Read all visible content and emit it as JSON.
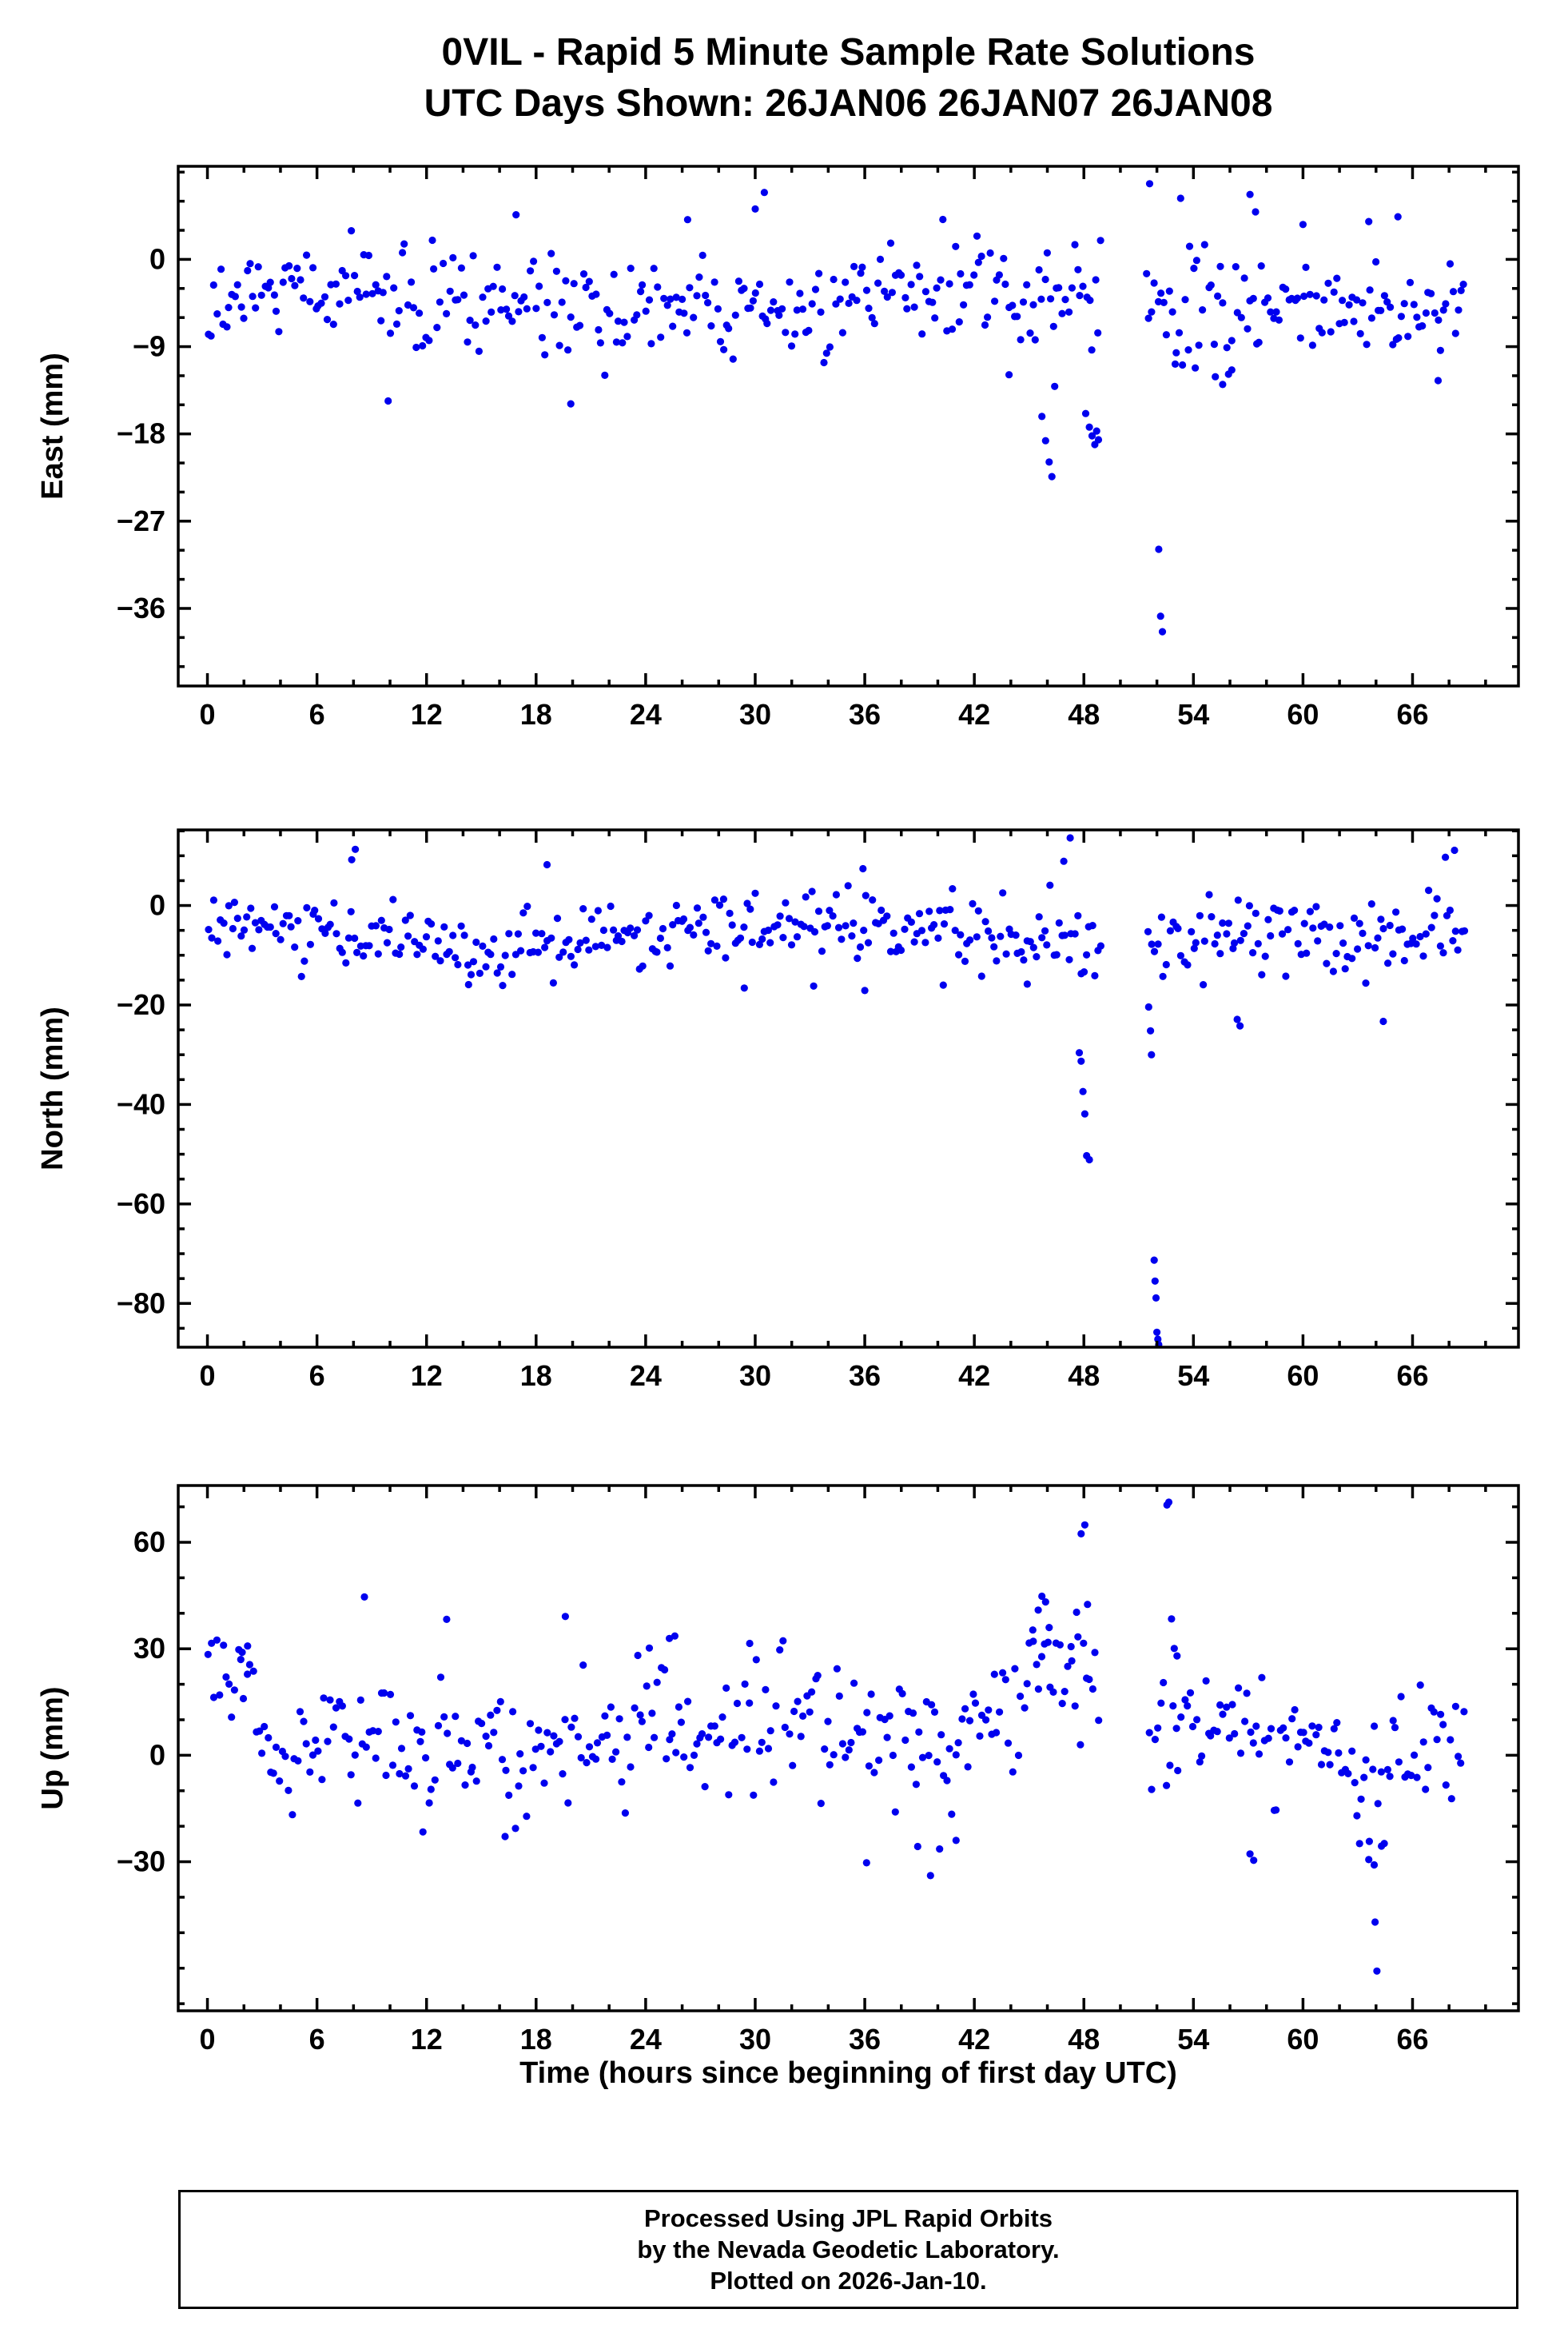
{
  "title": {
    "line1": "0VIL - Rapid 5 Minute Sample Rate Solutions",
    "line2": "UTC Days Shown:  26JAN06 26JAN07 26JAN08"
  },
  "footer": {
    "line1": "Processed Using JPL Rapid Orbits",
    "line2": "by the Nevada Geodetic Laboratory.",
    "line3": "Plotted on 2026-Jan-10."
  },
  "chart_data": {
    "type": "scatter",
    "title": "0VIL - Rapid 5 Minute Sample Rate Solutions",
    "subtitle": "UTC Days Shown:  26JAN06 26JAN07 26JAN08",
    "xlabel": "Time (hours since beginning of first day UTC)",
    "point_color": "#0000ee",
    "point_radius": 4.6,
    "grid": false,
    "legend": "none",
    "seed": 1234567,
    "x_axis": {
      "min": -1.6,
      "max": 71.8,
      "tick_values": [
        0,
        6,
        12,
        18,
        24,
        30,
        36,
        42,
        48,
        54,
        60,
        66
      ],
      "minor_step": 2,
      "sample_interval_hours": 0.0833,
      "data_gaps": [
        [
          48.95,
          51.4
        ]
      ]
    },
    "panels": [
      {
        "name": "east",
        "ylabel": "East (mm)",
        "ylim": [
          -44,
          9.6
        ],
        "yticks": [
          0,
          -9,
          -18,
          -27,
          -36
        ],
        "yminor": 3,
        "band": {
          "x_start": 0.05,
          "x_end": 68.85,
          "x_step": 0.163,
          "x_jitter": 0.1,
          "base": -4.3,
          "wander_amp": 1.3,
          "wander_period": 6.5,
          "phase": 0.8,
          "noise_sd": 2.6,
          "clip": [
            -11.8,
            4.6
          ],
          "regions": [
            {
              "x0": 43.5,
              "x1": 49.0,
              "dy": -1.5,
              "s": 1.15
            },
            {
              "x0": 51.8,
              "x1": 58.0,
              "dy": -1.2,
              "s": 1.25
            }
          ]
        },
        "outliers": [
          [
            16.9,
            4.6
          ],
          [
            26.3,
            4.1
          ],
          [
            30.0,
            5.2
          ],
          [
            30.5,
            6.9
          ],
          [
            51.6,
            7.8
          ],
          [
            53.3,
            6.3
          ],
          [
            57.1,
            6.7
          ],
          [
            57.4,
            4.9
          ],
          [
            60.0,
            3.6
          ],
          [
            63.6,
            3.9
          ],
          [
            65.2,
            4.4
          ],
          [
            9.9,
            -14.6
          ],
          [
            19.9,
            -14.9
          ],
          [
            43.9,
            -11.9
          ],
          [
            45.7,
            -16.2
          ],
          [
            45.9,
            -18.7
          ],
          [
            46.1,
            -20.9
          ],
          [
            46.25,
            -22.4
          ],
          [
            46.4,
            -13.1
          ],
          [
            48.1,
            -15.9
          ],
          [
            48.3,
            -17.3
          ],
          [
            48.45,
            -18.2
          ],
          [
            48.6,
            -19.1
          ],
          [
            48.7,
            -17.7
          ],
          [
            48.8,
            -18.6
          ],
          [
            52.1,
            -29.9
          ],
          [
            52.2,
            -36.8
          ],
          [
            52.3,
            -38.4
          ],
          [
            53.0,
            -10.8
          ],
          [
            54.1,
            -11.2
          ],
          [
            55.2,
            -12.1
          ],
          [
            55.6,
            -12.9
          ],
          [
            56.1,
            -11.4
          ],
          [
            67.4,
            -12.5
          ]
        ]
      },
      {
        "name": "north",
        "ylabel": "North (mm)",
        "ylim": [
          -88.8,
          15.2
        ],
        "yticks": [
          0,
          -20,
          -40,
          -60,
          -80
        ],
        "yminor": 5,
        "band": {
          "x_start": 0.05,
          "x_end": 68.85,
          "x_step": 0.163,
          "x_jitter": 0.1,
          "base": -5.5,
          "wander_amp": 1.5,
          "wander_period": 5.5,
          "phase": 2.0,
          "noise_sd": 3.4,
          "clip": [
            -15.5,
            4.2
          ],
          "regions": [
            {
              "x0": 12.5,
              "x1": 16.5,
              "dy": -2.5,
              "s": 1.0
            },
            {
              "x0": 61.5,
              "x1": 64.5,
              "dy": -3.0,
              "s": 1.1
            },
            {
              "x0": 51.5,
              "x1": 69.0,
              "dy": -1.0,
              "s": 1.1
            }
          ]
        },
        "outliers": [
          [
            7.9,
            9.2
          ],
          [
            8.1,
            11.3
          ],
          [
            18.6,
            8.2
          ],
          [
            35.9,
            7.4
          ],
          [
            46.9,
            8.9
          ],
          [
            47.25,
            13.6
          ],
          [
            67.8,
            9.7
          ],
          [
            68.3,
            11.1
          ],
          [
            14.3,
            -15.9
          ],
          [
            29.4,
            -16.6
          ],
          [
            33.2,
            -16.2
          ],
          [
            36.0,
            -17.1
          ],
          [
            40.3,
            -16.0
          ],
          [
            44.9,
            -15.8
          ],
          [
            47.75,
            -29.6
          ],
          [
            47.85,
            -31.3
          ],
          [
            47.95,
            -37.4
          ],
          [
            48.05,
            -41.9
          ],
          [
            48.15,
            -50.3
          ],
          [
            48.3,
            -51.1
          ],
          [
            51.55,
            -20.4
          ],
          [
            51.65,
            -25.2
          ],
          [
            51.7,
            -30.0
          ],
          [
            51.85,
            -71.3
          ],
          [
            51.9,
            -75.5
          ],
          [
            51.95,
            -78.9
          ],
          [
            52.0,
            -85.8
          ],
          [
            52.05,
            -87.2
          ],
          [
            52.1,
            -88.3
          ],
          [
            56.4,
            -22.9
          ],
          [
            56.55,
            -24.2
          ],
          [
            64.4,
            -23.3
          ]
        ]
      },
      {
        "name": "up",
        "ylabel": "Up (mm)",
        "ylim": [
          -72,
          76
        ],
        "yticks": [
          60,
          30,
          0,
          -30
        ],
        "yminor": 10,
        "band": {
          "x_start": 0.05,
          "x_end": 68.85,
          "x_step": 0.163,
          "x_jitter": 0.1,
          "base": 7.0,
          "wander_amp": 5.0,
          "wander_period": 7.5,
          "phase": 2.2,
          "noise_sd": 8.5,
          "clip": [
            -24.0,
            31.0
          ],
          "regions": [
            {
              "x0": 0.0,
              "x1": 2.6,
              "dy": 9.0,
              "s": 0.8
            },
            {
              "x0": 3.4,
              "x1": 6.3,
              "dy": -13.0,
              "s": 0.9
            },
            {
              "x0": 10.5,
              "x1": 12.3,
              "dy": -5.0,
              "s": 1.0
            },
            {
              "x0": 23.5,
              "x1": 26.5,
              "dy": 5.0,
              "s": 1.1
            },
            {
              "x0": 36.0,
              "x1": 41.0,
              "dy": -7.0,
              "s": 1.2
            },
            {
              "x0": 44.8,
              "x1": 48.3,
              "dy": 9.0,
              "s": 1.2
            },
            {
              "x0": 62.8,
              "x1": 64.6,
              "dy": -12.0,
              "s": 1.1
            }
          ]
        },
        "outliers": [
          [
            1.9,
            29.0
          ],
          [
            2.2,
            30.8
          ],
          [
            8.6,
            44.6
          ],
          [
            13.1,
            38.3
          ],
          [
            19.6,
            39.1
          ],
          [
            24.2,
            30.2
          ],
          [
            25.3,
            32.9
          ],
          [
            25.6,
            33.6
          ],
          [
            29.7,
            31.5
          ],
          [
            45.2,
            35.3
          ],
          [
            45.5,
            40.9
          ],
          [
            45.7,
            44.8
          ],
          [
            45.9,
            43.2
          ],
          [
            46.1,
            36.0
          ],
          [
            47.3,
            30.6
          ],
          [
            47.6,
            40.3
          ],
          [
            47.85,
            62.4
          ],
          [
            48.05,
            64.9
          ],
          [
            48.2,
            42.5
          ],
          [
            52.55,
            70.5
          ],
          [
            52.65,
            71.3
          ],
          [
            52.8,
            38.4
          ],
          [
            52.95,
            30.1
          ],
          [
            53.1,
            28.0
          ],
          [
            11.8,
            -21.6
          ],
          [
            16.3,
            -22.9
          ],
          [
            36.1,
            -30.3
          ],
          [
            38.9,
            -25.7
          ],
          [
            39.6,
            -33.9
          ],
          [
            40.1,
            -26.4
          ],
          [
            41.0,
            -24.0
          ],
          [
            57.1,
            -27.8
          ],
          [
            57.3,
            -29.6
          ],
          [
            63.1,
            -24.9
          ],
          [
            63.6,
            -29.4
          ],
          [
            63.9,
            -30.9
          ],
          [
            63.95,
            -47.0
          ],
          [
            64.05,
            -60.8
          ],
          [
            64.3,
            -25.6
          ]
        ]
      }
    ]
  }
}
